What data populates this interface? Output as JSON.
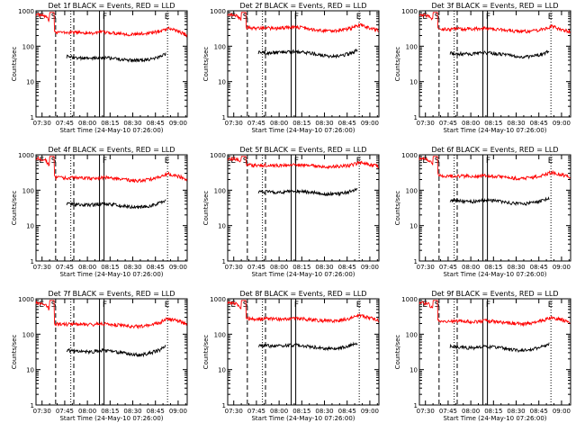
{
  "chart_data": [
    {
      "type": "line",
      "title": "Det 1f BLACK = Events, RED = LLD",
      "xlabel": "Start Time (24-May-10 07:26:00)",
      "ylabel": "Counts/sec",
      "yscale": "log",
      "ylim": [
        1,
        1000
      ],
      "x_ticks": [
        "07:30",
        "07:45",
        "08:00",
        "08:15",
        "08:30",
        "08:45",
        "09:00"
      ],
      "markers": [
        "E",
        "S",
        "F",
        "E"
      ],
      "series": [
        {
          "name": "RED = LLD",
          "color": "#ff0000",
          "values": [
            800,
            700,
            260,
            240,
            250,
            245,
            235,
            250,
            240,
            230,
            215,
            220,
            240,
            260,
            320,
            270,
            200
          ]
        },
        {
          "name": "BLACK = Events",
          "color": "#000000",
          "values": [
            null,
            null,
            55,
            52,
            48,
            45,
            45,
            48,
            46,
            42,
            40,
            40,
            42,
            48,
            65,
            null,
            null
          ]
        }
      ]
    },
    {
      "type": "line",
      "title": "Det 2f BLACK = Events, RED = LLD",
      "xlabel": "Start Time (24-May-10 07:26:00)",
      "ylabel": "Counts/sec",
      "yscale": "log",
      "ylim": [
        1,
        1000
      ],
      "x_ticks": [
        "07:30",
        "07:45",
        "08:00",
        "08:15",
        "08:30",
        "08:45",
        "09:00"
      ],
      "markers": [
        "E",
        "S",
        "F",
        "E"
      ],
      "series": [
        {
          "name": "RED = LLD",
          "color": "#ff0000",
          "values": [
            800,
            700,
            340,
            320,
            330,
            320,
            330,
            350,
            330,
            300,
            280,
            270,
            290,
            320,
            400,
            330,
            280
          ]
        },
        {
          "name": "BLACK = Events",
          "color": "#000000",
          "values": [
            null,
            null,
            70,
            68,
            65,
            66,
            68,
            72,
            68,
            62,
            55,
            52,
            55,
            62,
            85,
            null,
            null
          ]
        }
      ]
    },
    {
      "type": "line",
      "title": "Det 3f BLACK = Events, RED = LLD",
      "xlabel": "Start Time (24-May-10 07:26:00)",
      "ylabel": "Counts/sec",
      "yscale": "log",
      "ylim": [
        1,
        1000
      ],
      "x_ticks": [
        "07:30",
        "07:45",
        "08:00",
        "08:15",
        "08:30",
        "08:45",
        "09:00"
      ],
      "markers": [
        "E",
        "S",
        "F",
        "E"
      ],
      "series": [
        {
          "name": "RED = LLD",
          "color": "#ff0000",
          "values": [
            800,
            700,
            320,
            300,
            310,
            305,
            310,
            320,
            310,
            290,
            270,
            260,
            270,
            300,
            360,
            300,
            260
          ]
        },
        {
          "name": "BLACK = Events",
          "color": "#000000",
          "values": [
            null,
            null,
            70,
            66,
            62,
            60,
            62,
            66,
            63,
            58,
            52,
            50,
            52,
            60,
            78,
            null,
            null
          ]
        }
      ]
    },
    {
      "type": "line",
      "title": "Det 4f BLACK = Events, RED = LLD",
      "xlabel": "Start Time (24-May-10 07:26:00)",
      "ylabel": "Counts/sec",
      "yscale": "log",
      "ylim": [
        1,
        1000
      ],
      "x_ticks": [
        "07:30",
        "07:45",
        "08:00",
        "08:15",
        "08:30",
        "08:45",
        "09:00"
      ],
      "markers": [
        "E",
        "S",
        "F",
        "E"
      ],
      "series": [
        {
          "name": "RED = LLD",
          "color": "#ff0000",
          "values": [
            800,
            700,
            230,
            220,
            225,
            220,
            215,
            230,
            220,
            205,
            190,
            185,
            200,
            230,
            290,
            250,
            200
          ]
        },
        {
          "name": "BLACK = Events",
          "color": "#000000",
          "values": [
            null,
            null,
            45,
            43,
            40,
            38,
            39,
            42,
            40,
            37,
            34,
            33,
            36,
            42,
            55,
            null,
            null
          ]
        }
      ]
    },
    {
      "type": "line",
      "title": "Det 5f BLACK = Events, RED = LLD",
      "xlabel": "Start Time (24-May-10 07:26:00)",
      "ylabel": "Counts/sec",
      "yscale": "log",
      "ylim": [
        1,
        1000
      ],
      "x_ticks": [
        "07:30",
        "07:45",
        "08:00",
        "08:15",
        "08:30",
        "08:45",
        "09:00"
      ],
      "markers": [
        "E",
        "S",
        "F",
        "E"
      ],
      "series": [
        {
          "name": "RED = LLD",
          "color": "#ff0000",
          "values": [
            800,
            750,
            520,
            500,
            510,
            500,
            505,
            520,
            510,
            490,
            470,
            460,
            480,
            510,
            600,
            540,
            460
          ]
        },
        {
          "name": "BLACK = Events",
          "color": "#000000",
          "values": [
            null,
            null,
            95,
            92,
            90,
            88,
            90,
            95,
            92,
            86,
            80,
            78,
            82,
            92,
            115,
            null,
            null
          ]
        }
      ]
    },
    {
      "type": "line",
      "title": "Det 6f BLACK = Events, RED = LLD",
      "xlabel": "Start Time (24-May-10 07:26:00)",
      "ylabel": "Counts/sec",
      "yscale": "log",
      "ylim": [
        1,
        1000
      ],
      "x_ticks": [
        "07:30",
        "07:45",
        "08:00",
        "08:15",
        "08:30",
        "08:45",
        "09:00"
      ],
      "markers": [
        "E",
        "S",
        "F",
        "E"
      ],
      "series": [
        {
          "name": "RED = LLD",
          "color": "#ff0000",
          "values": [
            800,
            700,
            260,
            250,
            255,
            250,
            245,
            260,
            250,
            235,
            220,
            215,
            230,
            260,
            320,
            280,
            230
          ]
        },
        {
          "name": "BLACK = Events",
          "color": "#000000",
          "values": [
            null,
            null,
            55,
            52,
            50,
            48,
            48,
            52,
            50,
            46,
            42,
            41,
            44,
            50,
            62,
            null,
            null
          ]
        }
      ]
    },
    {
      "type": "line",
      "title": "Det 7f BLACK = Events, RED = LLD",
      "xlabel": "Start Time (24-May-10 07:26:00)",
      "ylabel": "Counts/sec",
      "yscale": "log",
      "ylim": [
        1,
        1000
      ],
      "x_ticks": [
        "07:30",
        "07:45",
        "08:00",
        "08:15",
        "08:30",
        "08:45",
        "09:00"
      ],
      "markers": [
        "E",
        "S",
        "F",
        "E"
      ],
      "series": [
        {
          "name": "RED = LLD",
          "color": "#ff0000",
          "values": [
            800,
            700,
            200,
            190,
            195,
            190,
            185,
            200,
            190,
            180,
            170,
            165,
            180,
            210,
            280,
            240,
            190
          ]
        },
        {
          "name": "BLACK = Events",
          "color": "#000000",
          "values": [
            null,
            null,
            38,
            36,
            34,
            32,
            32,
            35,
            33,
            30,
            27,
            26,
            29,
            35,
            48,
            null,
            null
          ]
        }
      ]
    },
    {
      "type": "line",
      "title": "Det 8f BLACK = Events, RED = LLD",
      "xlabel": "Start Time (24-May-10 07:26:00)",
      "ylabel": "Counts/sec",
      "yscale": "log",
      "ylim": [
        1,
        1000
      ],
      "x_ticks": [
        "07:30",
        "07:45",
        "08:00",
        "08:15",
        "08:30",
        "08:45",
        "09:00"
      ],
      "markers": [
        "E",
        "S",
        "F",
        "E"
      ],
      "series": [
        {
          "name": "RED = LLD",
          "color": "#ff0000",
          "values": [
            800,
            700,
            280,
            270,
            275,
            270,
            265,
            280,
            270,
            255,
            240,
            235,
            250,
            280,
            340,
            290,
            240
          ]
        },
        {
          "name": "BLACK = Events",
          "color": "#000000",
          "values": [
            null,
            null,
            52,
            50,
            48,
            46,
            47,
            50,
            48,
            44,
            40,
            39,
            42,
            48,
            60,
            null,
            null
          ]
        }
      ]
    },
    {
      "type": "line",
      "title": "Det 9f BLACK = Events, RED = LLD",
      "xlabel": "Start Time (24-May-10 07:26:00)",
      "ylabel": "Counts/sec",
      "yscale": "log",
      "ylim": [
        1,
        1000
      ],
      "x_ticks": [
        "07:30",
        "07:45",
        "08:00",
        "08:15",
        "08:30",
        "08:45",
        "09:00"
      ],
      "markers": [
        "E",
        "S",
        "F",
        "E"
      ],
      "series": [
        {
          "name": "RED = LLD",
          "color": "#ff0000",
          "values": [
            800,
            700,
            240,
            230,
            235,
            230,
            225,
            240,
            230,
            215,
            200,
            195,
            210,
            240,
            300,
            260,
            210
          ]
        },
        {
          "name": "BLACK = Events",
          "color": "#000000",
          "values": [
            null,
            null,
            48,
            46,
            44,
            42,
            42,
            45,
            43,
            40,
            36,
            35,
            38,
            44,
            56,
            null,
            null
          ]
        }
      ]
    }
  ],
  "y_tick_labels": [
    "1",
    "10",
    "100",
    "1000"
  ]
}
